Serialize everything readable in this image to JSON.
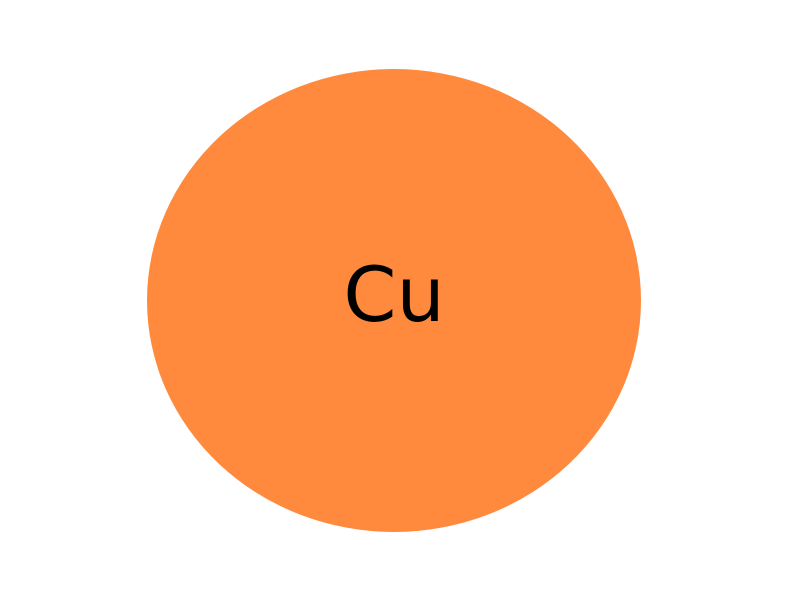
{
  "atom": {
    "symbol": "Cu",
    "fill_color": "#FF8A3D",
    "text_color": "#000000"
  }
}
